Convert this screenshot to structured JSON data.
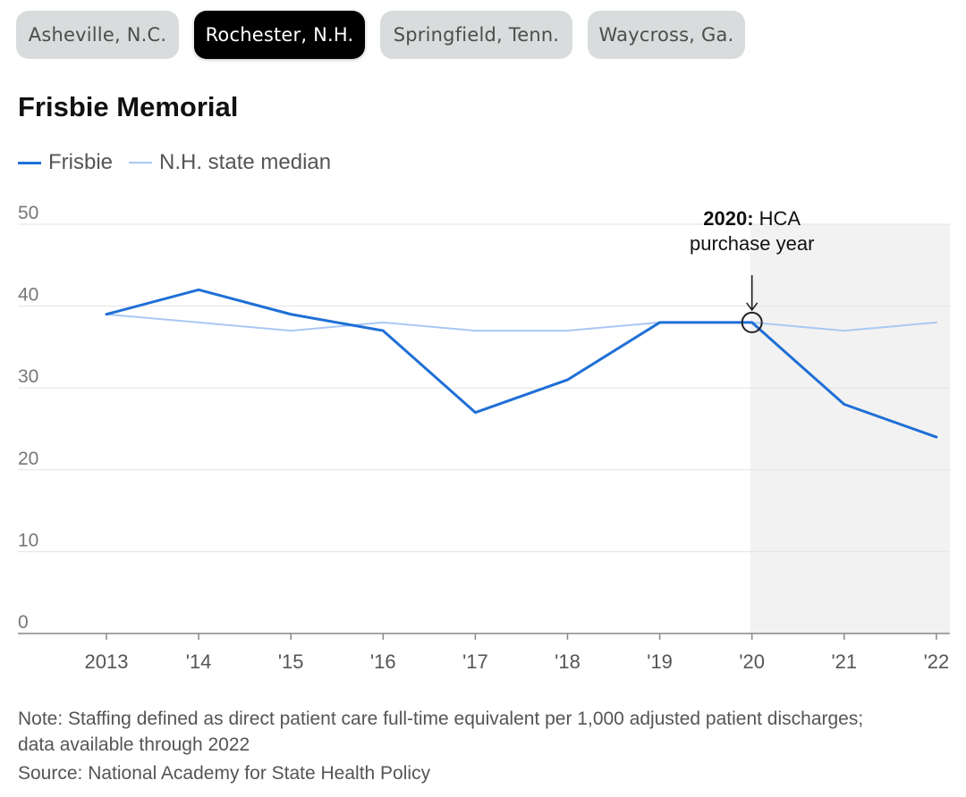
{
  "tabs": [
    {
      "label": "Asheville, N.C.",
      "active": false
    },
    {
      "label": "Rochester, N.H.",
      "active": true
    },
    {
      "label": "Springfield, Tenn.",
      "active": false
    },
    {
      "label": "Waycross, Ga.",
      "active": false
    }
  ],
  "colors": {
    "primary_line": "#1f6fd6",
    "median_line": "#a9c8f3",
    "shade": "#f2f2f2"
  },
  "chart_data": {
    "type": "line",
    "title": "Frisbie Memorial",
    "x": [
      "2013",
      "'14",
      "'15",
      "'16",
      "'17",
      "'18",
      "'19",
      "'20",
      "'21",
      "'22"
    ],
    "series": [
      {
        "name": "Frisbie",
        "values": [
          39,
          42,
          39,
          37,
          27,
          31,
          38,
          38,
          28,
          24
        ]
      },
      {
        "name": "N.H. state median",
        "values": [
          39,
          38,
          37,
          38,
          37,
          37,
          38,
          38,
          37,
          38
        ]
      }
    ],
    "yticks": [
      0,
      10,
      20,
      30,
      40,
      50
    ],
    "ylim": [
      0,
      50
    ],
    "grid": true,
    "legend": "top-left",
    "shaded_from_index": 7,
    "annotation": {
      "year_bold": "2020:",
      "text_line1": "HCA",
      "text_line2": "purchase year",
      "index": 7
    }
  },
  "note": "Note: Staffing defined as direct patient care full-time equivalent per 1,000 adjusted patient discharges; data available through 2022",
  "source": "Source: National Academy for State Health Policy"
}
